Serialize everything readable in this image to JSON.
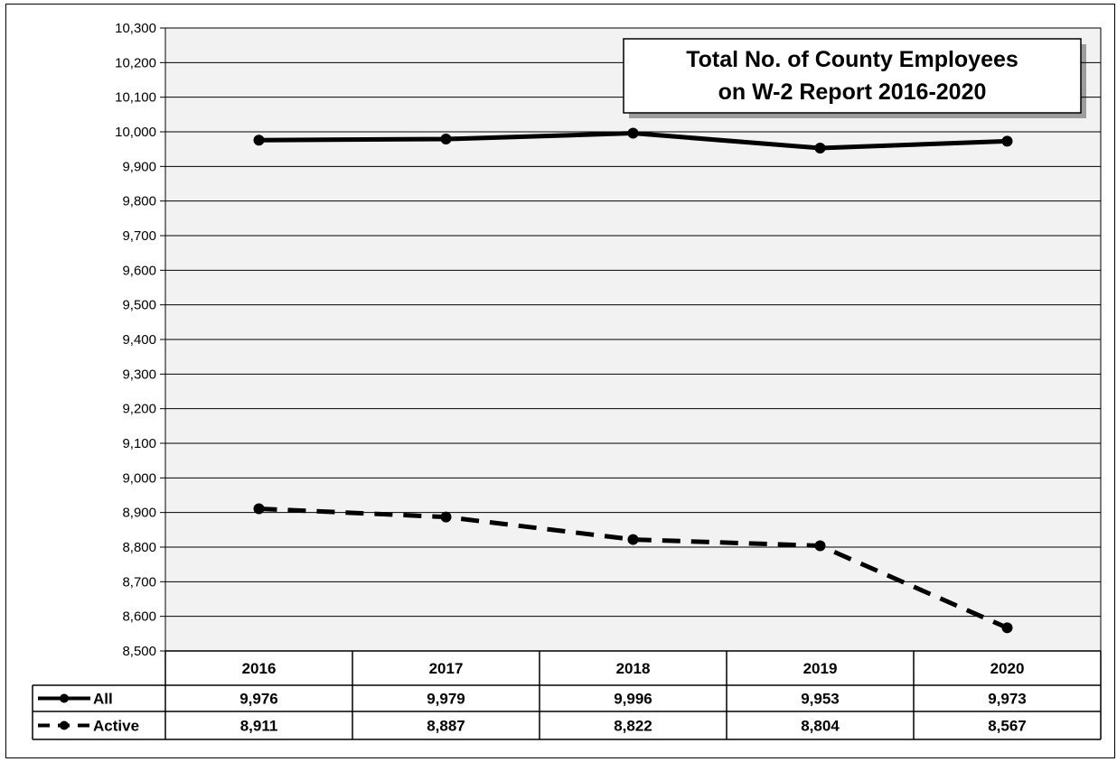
{
  "chart_data": {
    "type": "line",
    "title_lines": [
      "Total No. of County Employees",
      "on W-2 Report 2016-2020"
    ],
    "categories": [
      "2016",
      "2017",
      "2018",
      "2019",
      "2020"
    ],
    "series": [
      {
        "name": "All",
        "style": "solid",
        "values": [
          9976,
          9979,
          9996,
          9953,
          9973
        ],
        "labels": [
          "9,976",
          "9,979",
          "9,996",
          "9,953",
          "9,973"
        ]
      },
      {
        "name": "Active",
        "style": "dashed",
        "values": [
          8911,
          8887,
          8822,
          8804,
          8567
        ],
        "labels": [
          "8,911",
          "8,887",
          "8,822",
          "8,804",
          "8,567"
        ]
      }
    ],
    "ylim": [
      8500,
      10300
    ],
    "yticks": [
      8500,
      8600,
      8700,
      8800,
      8900,
      9000,
      9100,
      9200,
      9300,
      9400,
      9500,
      9600,
      9700,
      9800,
      9900,
      10000,
      10100,
      10200,
      10300
    ],
    "ytick_labels": [
      "8,500",
      "8,600",
      "8,700",
      "8,800",
      "8,900",
      "9,000",
      "9,100",
      "9,200",
      "9,300",
      "9,400",
      "9,500",
      "9,600",
      "9,700",
      "9,800",
      "9,900",
      "10,000",
      "10,100",
      "10,200",
      "10,300"
    ],
    "grid": true,
    "legend": "data-table",
    "colors": {
      "plot_background": "#f2f2f2",
      "line": "#000000"
    }
  }
}
